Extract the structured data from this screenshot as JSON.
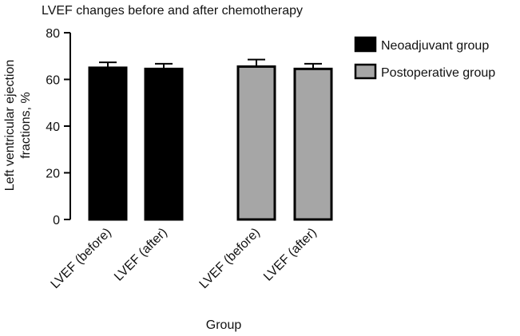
{
  "chart_data": {
    "type": "bar",
    "title": "LVEF changes before and after chemotherapy",
    "xlabel": "Group",
    "ylabel_lines": [
      "Left ventricular ejection",
      "fractions, %"
    ],
    "ylim": [
      0,
      80
    ],
    "yticks": [
      "0",
      "20",
      "40",
      "60",
      "80"
    ],
    "grid": false,
    "legend_position": "top-right",
    "series": [
      {
        "name": "Neoadjuvant group",
        "color": "#000000",
        "categories": [
          "LVEF (before)",
          "LVEF (after)"
        ],
        "values": [
          65,
          64.5
        ],
        "errors": [
          2.3,
          2.2
        ]
      },
      {
        "name": "Postoperative group",
        "color": "#a6a6a6",
        "categories": [
          "LVEF (before)",
          "LVEF (after)"
        ],
        "values": [
          65.5,
          64.5
        ],
        "errors": [
          3.0,
          2.2
        ]
      }
    ]
  }
}
